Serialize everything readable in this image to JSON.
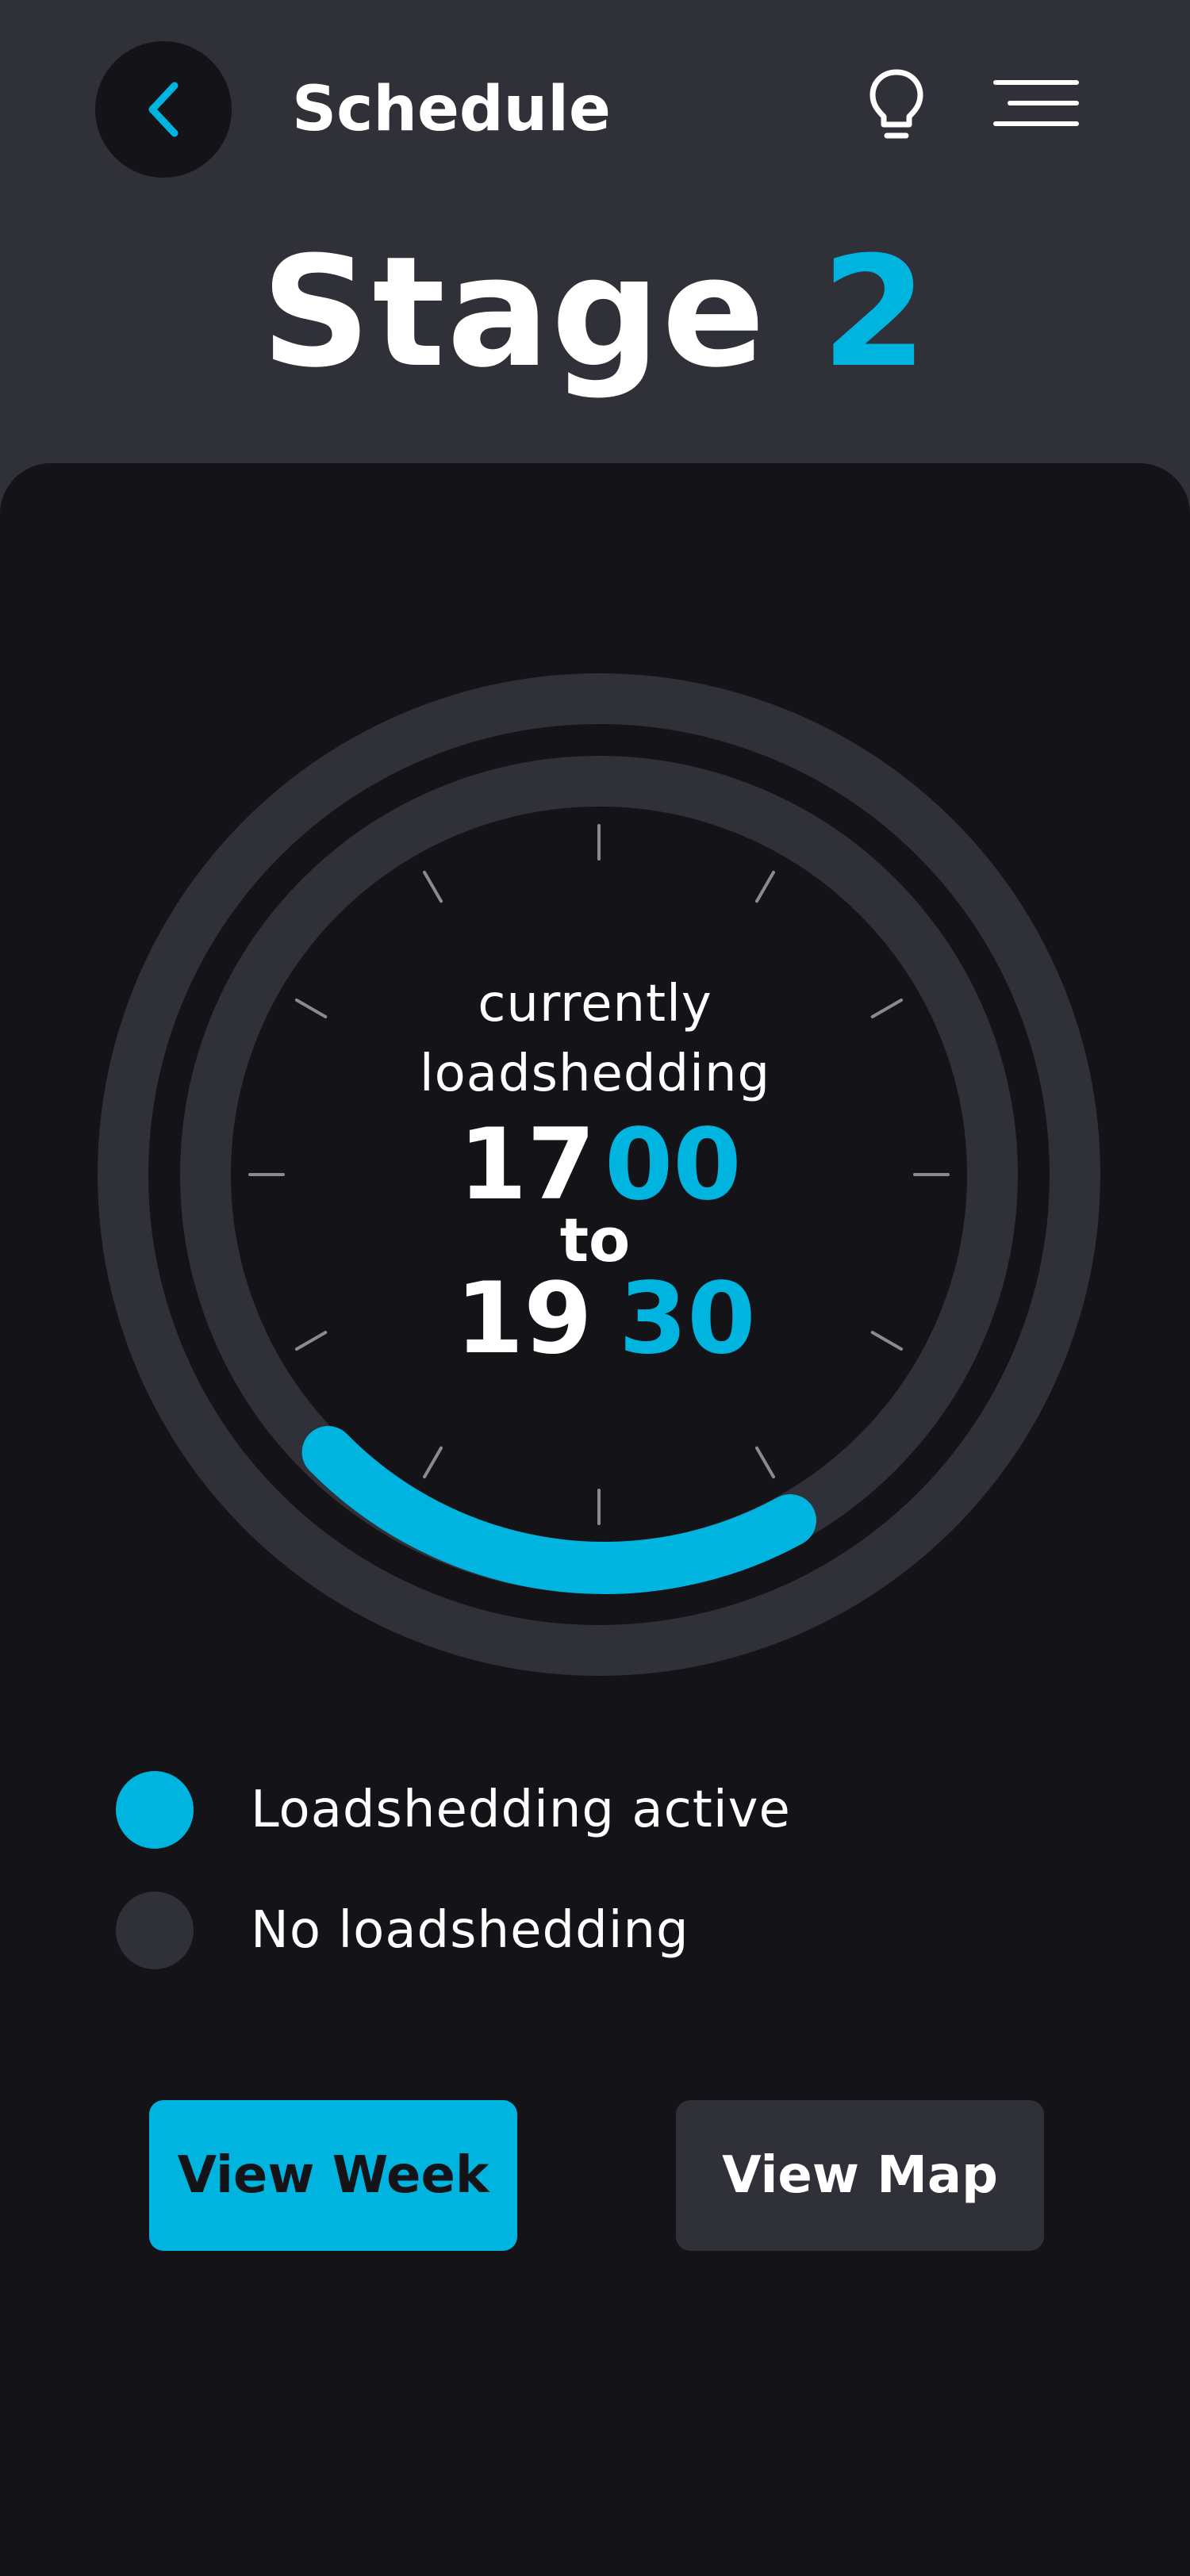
{
  "header": {
    "title": "Schedule",
    "back_icon": "chevron-left-icon",
    "tip_icon": "lightbulb-icon",
    "menu_icon": "hamburger-menu-icon"
  },
  "stage": {
    "label": "Stage",
    "number": "2"
  },
  "dial": {
    "caption_line1": "currently",
    "caption_line2": "loadshedding",
    "start_hour": "17",
    "start_minute": "00",
    "to_label": "to",
    "end_hour": "19",
    "end_minute": "30"
  },
  "legend": {
    "active_label": "Loadshedding active",
    "inactive_label": "No loadshedding"
  },
  "buttons": {
    "view_week": "View Week",
    "view_map": "View Map"
  },
  "colors": {
    "accent": "#00b4e0",
    "background": "#131318",
    "surface": "#2f3038",
    "text": "#ffffff"
  }
}
